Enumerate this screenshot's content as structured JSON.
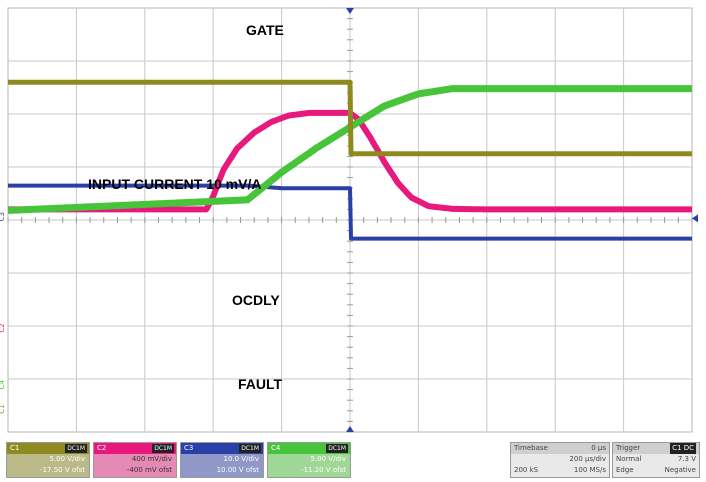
{
  "colors": {
    "c1": "#8f8a1f",
    "c2": "#e8197d",
    "c3": "#2b3fa8",
    "c4": "#48c43a",
    "grid": "#c8c8c8"
  },
  "labels": {
    "gate": "GATE",
    "input_current": "INPUT CURRENT 10 mV/A",
    "ocdly": "OCDLY",
    "fault": "FAULT"
  },
  "channels": [
    {
      "id": "C1",
      "tag": "DC1M",
      "scale": "5.00 V/div",
      "offset": "-17.50 V ofst"
    },
    {
      "id": "C2",
      "tag": "DC1M",
      "scale": "400 mV/div",
      "offset": "-400 mV ofst"
    },
    {
      "id": "C3",
      "tag": "DC1M",
      "scale": "10.0 V/div",
      "offset": "10.00 V ofst"
    },
    {
      "id": "C4",
      "tag": "DC1M",
      "scale": "5.00 V/div",
      "offset": "-11.20 V ofst"
    }
  ],
  "timebase": {
    "label": "Timebase",
    "delay": "0 µs",
    "per_div": "200 µs/div",
    "samples": "200 kS",
    "rate": "100 MS/s"
  },
  "trigger": {
    "label": "Trigger",
    "badge": "C1 DC",
    "mode": "Normal",
    "level": "7.3 V",
    "type": "Edge",
    "slope": "Negative"
  },
  "chart_data": {
    "type": "line",
    "xlim": [
      -1000,
      1000
    ],
    "x_units": "µs",
    "grid": true,
    "series": [
      {
        "name": "GATE",
        "channel": "C3",
        "x": [
          -1000,
          -300,
          -200,
          0,
          0.1,
          1000
        ],
        "y": [
          0.65,
          0.65,
          0.6,
          0.6,
          -0.35,
          -0.35
        ]
      },
      {
        "name": "INPUT CURRENT 10 mV/A",
        "channel": "C2",
        "x": [
          -1000,
          -420,
          -400,
          -370,
          -330,
          -280,
          -230,
          -180,
          -120,
          -60,
          0,
          25,
          60,
          100,
          140,
          180,
          230,
          300,
          400,
          1000
        ],
        "y": [
          0.2,
          0.2,
          0.45,
          0.95,
          1.35,
          1.65,
          1.85,
          1.97,
          2.02,
          2.02,
          2.02,
          1.9,
          1.55,
          1.1,
          0.7,
          0.42,
          0.26,
          0.21,
          0.2,
          0.2
        ]
      },
      {
        "name": "OCDLY",
        "channel": "C4",
        "x": [
          -1000,
          -300,
          -200,
          -100,
          0,
          100,
          200,
          300,
          1000
        ],
        "y": [
          0.18,
          0.38,
          0.9,
          1.35,
          1.75,
          2.15,
          2.38,
          2.48,
          2.48
        ]
      },
      {
        "name": "FAULT",
        "channel": "C1",
        "x": [
          -1000,
          0,
          0.1,
          1000
        ],
        "y": [
          2.6,
          2.6,
          1.25,
          1.25
        ]
      }
    ]
  }
}
